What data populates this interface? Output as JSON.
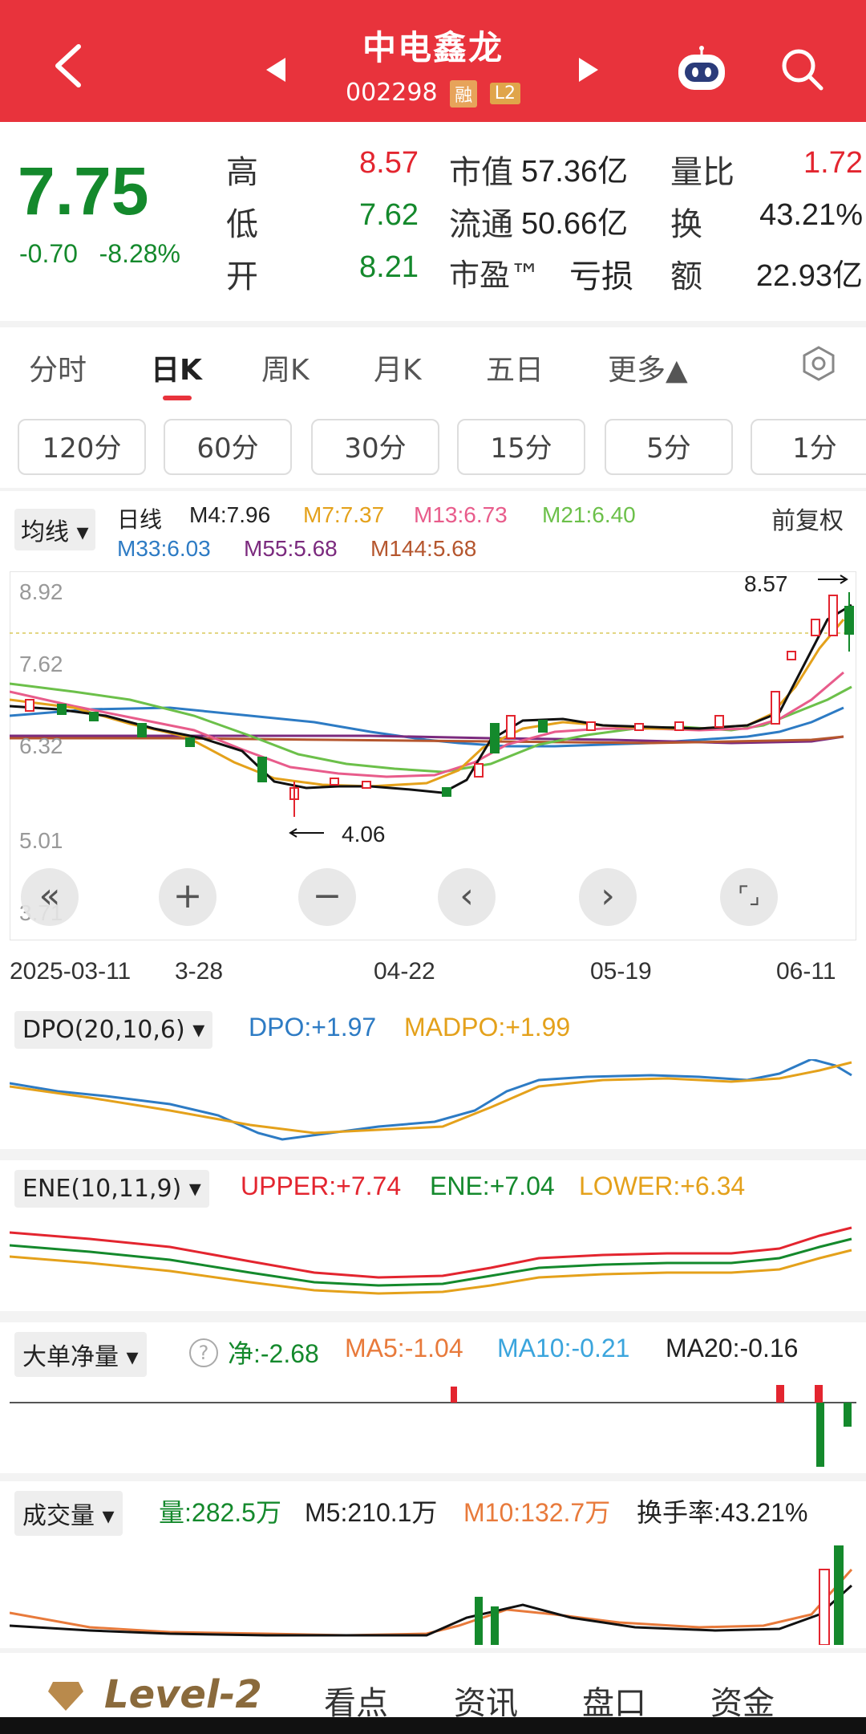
{
  "header": {
    "title": "中电鑫龙",
    "code": "002298",
    "badge_margin": "融",
    "badge_level": "L2"
  },
  "quote": {
    "price": "7.75",
    "change": "-0.70",
    "change_pct": "-8.28%",
    "high_label": "高",
    "high": "8.57",
    "low_label": "低",
    "low": "7.62",
    "open_label": "开",
    "open": "8.21",
    "mktcap_label": "市值",
    "mktcap": "57.36亿",
    "float_label": "流通",
    "float": "50.66亿",
    "pe_label": "市盈™",
    "pe": "亏损",
    "volratio_label": "量比",
    "volratio": "1.72",
    "turnover_label": "换",
    "turnover": "43.21%",
    "amount_label": "额",
    "amount": "22.93亿"
  },
  "period_tabs": [
    "分时",
    "日K",
    "周K",
    "月K",
    "五日",
    "更多▲"
  ],
  "active_tab": "日K",
  "minute_tabs": [
    "120分",
    "60分",
    "30分",
    "15分",
    "5分",
    "1分"
  ],
  "main_chart": {
    "ma_select": "均线 ▾",
    "line_label": "日线",
    "fuquan": "前复权",
    "ma_legend": [
      {
        "text": "M4:7.96",
        "color": "#222222"
      },
      {
        "text": "M7:7.37",
        "color": "#e4a11b"
      },
      {
        "text": "M13:6.73",
        "color": "#e85c8b"
      },
      {
        "text": "M21:6.40",
        "color": "#6cc04a"
      },
      {
        "text": "M33:6.03",
        "color": "#2d7bc4"
      },
      {
        "text": "M55:5.68",
        "color": "#7b2a7e"
      },
      {
        "text": "M144:5.68",
        "color": "#b5562e"
      }
    ],
    "y_labels": [
      "8.92",
      "7.62",
      "6.32",
      "5.01",
      "3.71"
    ],
    "x_labels": [
      "2025-03-11",
      "3-28",
      "04-22",
      "05-19",
      "06-11"
    ],
    "high_mark": "8.57",
    "low_mark": "4.06"
  },
  "controls": [
    "«",
    "+",
    "−",
    "‹",
    "›",
    "⌜⌟"
  ],
  "dpo": {
    "select": "DPO(20,10,6) ▾",
    "dpo": "DPO:+1.97",
    "madpo": "MADPO:+1.99"
  },
  "ene": {
    "select": "ENE(10,11,9) ▾",
    "upper": "UPPER:+7.74",
    "ene": "ENE:+7.04",
    "lower": "LOWER:+6.34"
  },
  "bigorder": {
    "select": "大单净量 ▾",
    "help": "?",
    "net": "净:-2.68",
    "ma5": "MA5:-1.04",
    "ma10": "MA10:-0.21",
    "ma20": "MA20:-0.16"
  },
  "volume": {
    "select": "成交量 ▾",
    "vol": "量:282.5万",
    "m5": "M5:210.1万",
    "m10": "M10:132.7万",
    "turnover": "换手率:43.21%"
  },
  "bottom_tabs": {
    "level2": "Level-2",
    "tab1": "看点",
    "tab2": "资讯",
    "tab3": "盘口",
    "tab4": "资金"
  }
}
